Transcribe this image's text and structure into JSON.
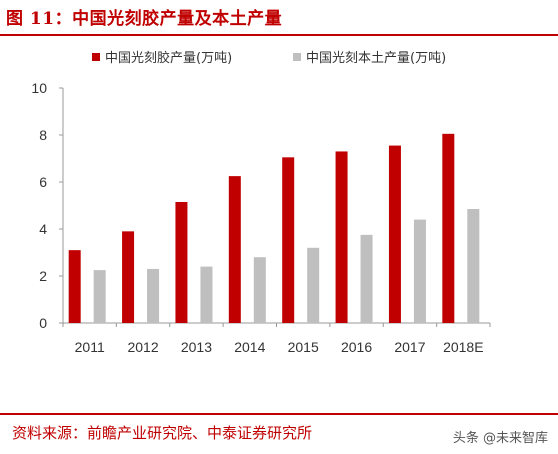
{
  "header": {
    "title": "图 11：中国光刻胶产量及本土产量"
  },
  "footer": {
    "source": "资料来源：前瞻产业研究院、中泰证券研究所",
    "watermark": "头条 @未来智库",
    "watermark_icon": "toutiao-logo-icon"
  },
  "colors": {
    "brand": "#c00000",
    "series_1": "#c00000",
    "series_2": "#bfbfbf",
    "axis": "#999999"
  },
  "chart_data": {
    "type": "bar",
    "title": "",
    "xlabel": "",
    "ylabel": "",
    "categories": [
      "2011",
      "2012",
      "2013",
      "2014",
      "2015",
      "2016",
      "2017",
      "2018E"
    ],
    "series": [
      {
        "name": "中国光刻胶产量(万吨)",
        "color": "#c00000",
        "values": [
          3.1,
          3.9,
          5.15,
          6.25,
          7.05,
          7.3,
          7.55,
          8.05
        ]
      },
      {
        "name": "中国光刻本土产量(万吨)",
        "color": "#bfbfbf",
        "values": [
          2.25,
          2.3,
          2.4,
          2.8,
          3.2,
          3.75,
          4.4,
          4.85
        ]
      }
    ],
    "ylim": [
      0,
      10
    ],
    "yticks": [
      "0",
      "2",
      "4",
      "6",
      "8",
      "10"
    ],
    "grid": false,
    "legend_position": "top"
  }
}
